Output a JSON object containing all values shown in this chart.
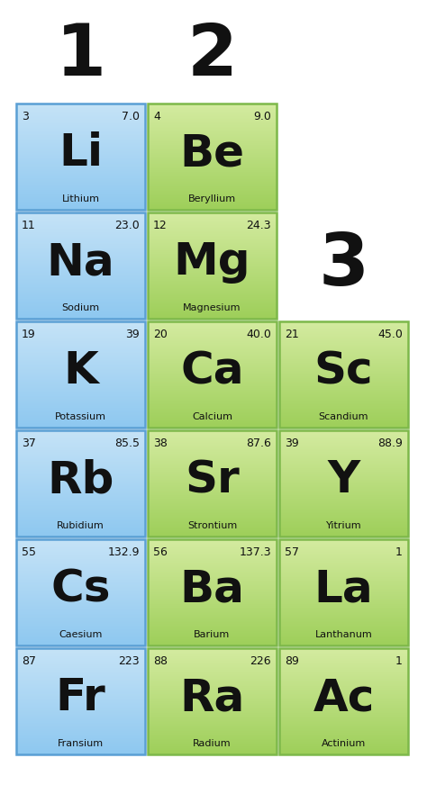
{
  "background_color": "#ffffff",
  "elements": [
    {
      "symbol": "Li",
      "name": "Lithium",
      "atomic_num": "3",
      "mass": "7.0",
      "row": 0,
      "col": 0,
      "color_top": "#c5e3f7",
      "color_bot": "#8ec8f0"
    },
    {
      "symbol": "Be",
      "name": "Beryllium",
      "atomic_num": "4",
      "mass": "9.0",
      "row": 0,
      "col": 1,
      "color_top": "#d4eba0",
      "color_bot": "#9ecf5a"
    },
    {
      "symbol": "Na",
      "name": "Sodium",
      "atomic_num": "11",
      "mass": "23.0",
      "row": 1,
      "col": 0,
      "color_top": "#c5e3f7",
      "color_bot": "#8ec8f0"
    },
    {
      "symbol": "Mg",
      "name": "Magnesium",
      "atomic_num": "12",
      "mass": "24.3",
      "row": 1,
      "col": 1,
      "color_top": "#d4eba0",
      "color_bot": "#9ecf5a"
    },
    {
      "symbol": "K",
      "name": "Potassium",
      "atomic_num": "19",
      "mass": "39",
      "row": 2,
      "col": 0,
      "color_top": "#c5e3f7",
      "color_bot": "#8ec8f0"
    },
    {
      "symbol": "Ca",
      "name": "Calcium",
      "atomic_num": "20",
      "mass": "40.0",
      "row": 2,
      "col": 1,
      "color_top": "#d4eba0",
      "color_bot": "#9ecf5a"
    },
    {
      "symbol": "Sc",
      "name": "Scandium",
      "atomic_num": "21",
      "mass": "45.0",
      "row": 2,
      "col": 2,
      "color_top": "#d4eba0",
      "color_bot": "#9ecf5a"
    },
    {
      "symbol": "Rb",
      "name": "Rubidium",
      "atomic_num": "37",
      "mass": "85.5",
      "row": 3,
      "col": 0,
      "color_top": "#c5e3f7",
      "color_bot": "#8ec8f0"
    },
    {
      "symbol": "Sr",
      "name": "Strontium",
      "atomic_num": "38",
      "mass": "87.6",
      "row": 3,
      "col": 1,
      "color_top": "#d4eba0",
      "color_bot": "#9ecf5a"
    },
    {
      "symbol": "Y",
      "name": "Yitrium",
      "atomic_num": "39",
      "mass": "88.9",
      "row": 3,
      "col": 2,
      "color_top": "#d4eba0",
      "color_bot": "#9ecf5a"
    },
    {
      "symbol": "Cs",
      "name": "Caesium",
      "atomic_num": "55",
      "mass": "132.9",
      "row": 4,
      "col": 0,
      "color_top": "#c5e3f7",
      "color_bot": "#8ec8f0"
    },
    {
      "symbol": "Ba",
      "name": "Barium",
      "atomic_num": "56",
      "mass": "137.3",
      "row": 4,
      "col": 1,
      "color_top": "#d4eba0",
      "color_bot": "#9ecf5a"
    },
    {
      "symbol": "La",
      "name": "Lanthanum",
      "atomic_num": "57",
      "mass": "1",
      "row": 4,
      "col": 2,
      "color_top": "#d4eba0",
      "color_bot": "#9ecf5a"
    },
    {
      "symbol": "Fr",
      "name": "Fransium",
      "atomic_num": "87",
      "mass": "223",
      "row": 5,
      "col": 0,
      "color_top": "#c5e3f7",
      "color_bot": "#8ec8f0"
    },
    {
      "symbol": "Ra",
      "name": "Radium",
      "atomic_num": "88",
      "mass": "226",
      "row": 5,
      "col": 1,
      "color_top": "#d4eba0",
      "color_bot": "#9ecf5a"
    },
    {
      "symbol": "Ac",
      "name": "Actinium",
      "atomic_num": "89",
      "mass": "1",
      "row": 5,
      "col": 2,
      "color_top": "#d4eba0",
      "color_bot": "#9ecf5a"
    }
  ],
  "group_labels": [
    {
      "label": "1",
      "col": 0
    },
    {
      "label": "2",
      "col": 1
    }
  ],
  "group3_label": "3",
  "cell_edge_blue": "#5a9fd4",
  "cell_edge_green": "#7db84a",
  "text_color": "#111111",
  "header_fontsize": 58,
  "symbol_fontsize": 36,
  "num_fontsize": 9,
  "name_fontsize": 8
}
